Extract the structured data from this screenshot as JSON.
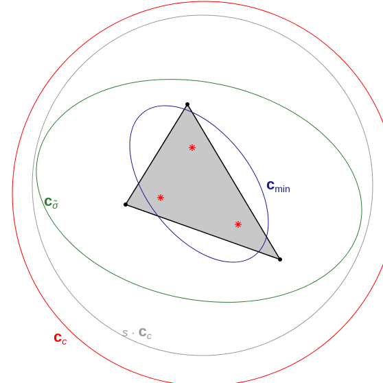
{
  "labels": [
    {
      "bold": "c",
      "sub": "min"
    },
    {
      "bold": "c",
      "sub": "σ̃"
    },
    {
      "prefix": "s · ",
      "bold": "c",
      "sub": "c"
    },
    {
      "bold": "c",
      "sub": "c"
    }
  ]
}
